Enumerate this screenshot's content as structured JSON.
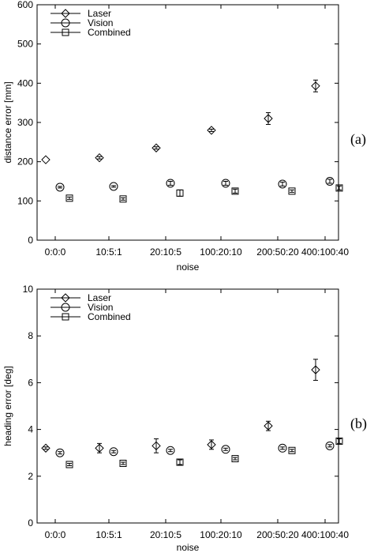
{
  "chart_data": [
    {
      "type": "scatter",
      "panel_label": "(a)",
      "xlabel": "noise",
      "ylabel": "distance error [mm]",
      "categories": [
        "0:0:0",
        "10:5:1",
        "20:10:5",
        "100:20:10",
        "200:50:20",
        "400:100:40"
      ],
      "ylim": [
        0,
        600
      ],
      "yticks": [
        0,
        100,
        200,
        300,
        400,
        500,
        600
      ],
      "legend_position": "top-left",
      "series": [
        {
          "name": "Laser",
          "marker": "diamond",
          "values": [
            205,
            210,
            235,
            280,
            310,
            393
          ],
          "err": [
            0,
            3,
            3,
            3,
            15,
            15
          ]
        },
        {
          "name": "Vision",
          "marker": "circle",
          "values": [
            135,
            137,
            145,
            145,
            143,
            150
          ],
          "err": [
            2,
            2,
            5,
            5,
            5,
            5
          ]
        },
        {
          "name": "Combined",
          "marker": "square",
          "values": [
            107,
            105,
            120,
            125,
            125,
            133
          ],
          "err": [
            3,
            3,
            8,
            5,
            3,
            5
          ]
        }
      ]
    },
    {
      "type": "scatter",
      "panel_label": "(b)",
      "xlabel": "noise",
      "ylabel": "heading error [deg]",
      "categories": [
        "0:0:0",
        "10:5:1",
        "20:10:5",
        "100:20:10",
        "200:50:20",
        "400:100:40"
      ],
      "ylim": [
        0,
        10
      ],
      "yticks": [
        0,
        2,
        4,
        6,
        8,
        10
      ],
      "legend_position": "top-left",
      "series": [
        {
          "name": "Laser",
          "marker": "diamond",
          "values": [
            3.2,
            3.2,
            3.3,
            3.35,
            4.15,
            6.55
          ],
          "err": [
            0.05,
            0.2,
            0.3,
            0.2,
            0.2,
            0.45
          ]
        },
        {
          "name": "Vision",
          "marker": "circle",
          "values": [
            3.0,
            3.05,
            3.1,
            3.15,
            3.2,
            3.3
          ],
          "err": [
            0.05,
            0.05,
            0.05,
            0.05,
            0.05,
            0.05
          ]
        },
        {
          "name": "Combined",
          "marker": "square",
          "values": [
            2.5,
            2.55,
            2.6,
            2.75,
            3.1,
            3.5
          ],
          "err": [
            0.05,
            0.05,
            0.1,
            0.05,
            0.05,
            0.1
          ]
        }
      ]
    }
  ]
}
